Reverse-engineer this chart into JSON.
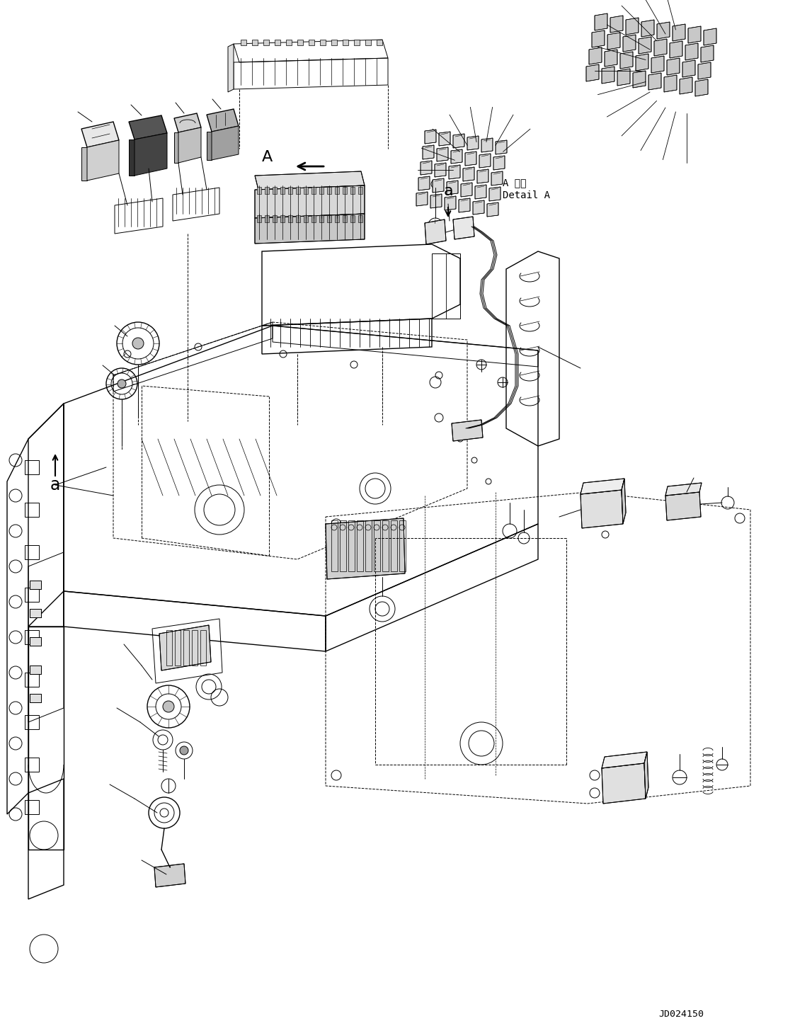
{
  "title": "",
  "background_color": "#ffffff",
  "line_color": "#000000",
  "diagram_code": "JD024150",
  "label_a": "a",
  "label_A": "A",
  "detail_text_line1": "A 詳細",
  "detail_text_line2": "Detail A",
  "figsize": [
    11.47,
    14.52
  ],
  "dpi": 100
}
